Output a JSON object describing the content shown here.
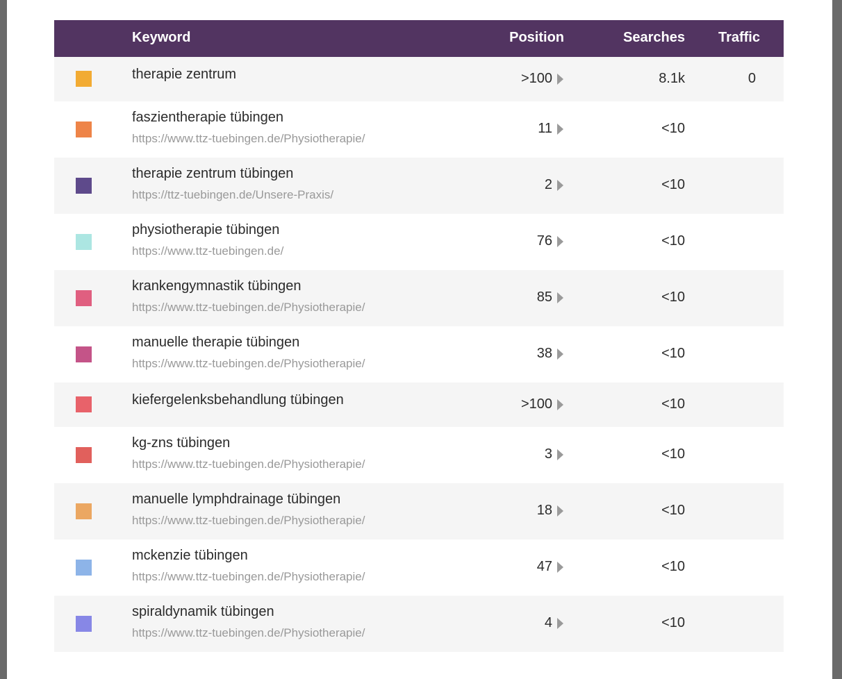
{
  "header": {
    "keyword": "Keyword",
    "position": "Position",
    "searches": "Searches",
    "traffic": "Traffic",
    "background": "#523461"
  },
  "rows": [
    {
      "color": "#f2ab33",
      "keyword": "therapie zentrum",
      "url": "",
      "position": ">100",
      "searches": "8.1k",
      "traffic": "0"
    },
    {
      "color": "#ee8448",
      "keyword": "faszientherapie tübingen",
      "url": "https://www.ttz-tuebingen.de/Physiotherapie/",
      "position": "11",
      "searches": "<10",
      "traffic": ""
    },
    {
      "color": "#5e4a8b",
      "keyword": "therapie zentrum tübingen",
      "url": "https://ttz-tuebingen.de/Unsere-Praxis/",
      "position": "2",
      "searches": "<10",
      "traffic": ""
    },
    {
      "color": "#ace6e2",
      "keyword": "physiotherapie tübingen",
      "url": "https://www.ttz-tuebingen.de/",
      "position": "76",
      "searches": "<10",
      "traffic": ""
    },
    {
      "color": "#e05f80",
      "keyword": "krankengymnastik tübingen",
      "url": "https://www.ttz-tuebingen.de/Physiotherapie/",
      "position": "85",
      "searches": "<10",
      "traffic": ""
    },
    {
      "color": "#c45488",
      "keyword": "manuelle therapie tübingen",
      "url": "https://www.ttz-tuebingen.de/Physiotherapie/",
      "position": "38",
      "searches": "<10",
      "traffic": ""
    },
    {
      "color": "#e8626a",
      "keyword": "kiefergelenksbehandlung tübingen",
      "url": "",
      "position": ">100",
      "searches": "<10",
      "traffic": ""
    },
    {
      "color": "#e1605c",
      "keyword": "kg-zns tübingen",
      "url": "https://www.ttz-tuebingen.de/Physiotherapie/",
      "position": "3",
      "searches": "<10",
      "traffic": ""
    },
    {
      "color": "#eba762",
      "keyword": "manuelle lymphdrainage tübingen",
      "url": "https://www.ttz-tuebingen.de/Physiotherapie/",
      "position": "18",
      "searches": "<10",
      "traffic": ""
    },
    {
      "color": "#8db4e8",
      "keyword": "mckenzie tübingen",
      "url": "https://www.ttz-tuebingen.de/Physiotherapie/",
      "position": "47",
      "searches": "<10",
      "traffic": ""
    },
    {
      "color": "#8787e6",
      "keyword": "spiraldynamik tübingen",
      "url": "https://www.ttz-tuebingen.de/Physiotherapie/",
      "position": "4",
      "searches": "<10",
      "traffic": ""
    }
  ]
}
